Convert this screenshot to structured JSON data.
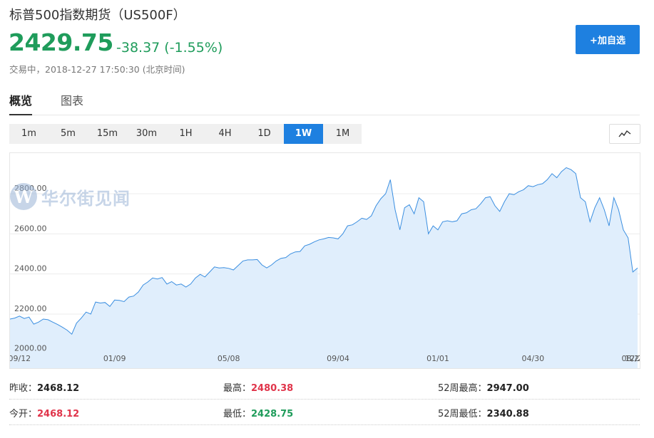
{
  "header": {
    "title": "标普500指数期货（US500F）",
    "price": "2429.75",
    "change": "-38.37 (-1.55%)",
    "status": "交易中，2018-12-27 17:50:30 (北京时间)",
    "watch_button": "+加自选"
  },
  "tabs": [
    "概览",
    "图表"
  ],
  "periods": {
    "items": [
      "1m",
      "5m",
      "15m",
      "30m",
      "1H",
      "4H",
      "1D",
      "1W",
      "1M"
    ],
    "active": "1W"
  },
  "chart_icon": "line-chart-icon",
  "watermark": {
    "logo": "W",
    "text": "华尔街见闻"
  },
  "chart_data": {
    "type": "area",
    "y_ticks": [
      "2200.00",
      "2400.00",
      "2600.00",
      "2800.00"
    ],
    "y_bottom_label": "2000.00",
    "x_ticks": [
      "09/12",
      "01/09",
      "05/08",
      "09/04",
      "01/01",
      "04/30",
      "08/27",
      "12/2"
    ],
    "ylim": [
      2000,
      2950
    ],
    "line_color": "#3a8ee0",
    "fill_color": "#e0eefc",
    "values": [
      2175,
      2180,
      2190,
      2178,
      2185,
      2150,
      2160,
      2175,
      2172,
      2160,
      2148,
      2135,
      2120,
      2100,
      2155,
      2180,
      2210,
      2200,
      2260,
      2255,
      2258,
      2238,
      2270,
      2268,
      2262,
      2285,
      2290,
      2310,
      2345,
      2360,
      2380,
      2375,
      2382,
      2350,
      2362,
      2345,
      2350,
      2335,
      2350,
      2380,
      2398,
      2385,
      2410,
      2435,
      2430,
      2432,
      2428,
      2420,
      2442,
      2465,
      2470,
      2470,
      2472,
      2445,
      2430,
      2445,
      2465,
      2478,
      2482,
      2500,
      2510,
      2512,
      2540,
      2548,
      2560,
      2570,
      2575,
      2582,
      2580,
      2575,
      2600,
      2640,
      2645,
      2660,
      2678,
      2672,
      2690,
      2740,
      2775,
      2800,
      2870,
      2720,
      2620,
      2730,
      2745,
      2700,
      2780,
      2760,
      2600,
      2640,
      2620,
      2660,
      2665,
      2660,
      2665,
      2700,
      2705,
      2720,
      2725,
      2750,
      2780,
      2785,
      2740,
      2712,
      2760,
      2800,
      2795,
      2810,
      2820,
      2840,
      2835,
      2845,
      2850,
      2870,
      2900,
      2880,
      2910,
      2930,
      2920,
      2900,
      2780,
      2760,
      2660,
      2730,
      2780,
      2720,
      2640,
      2780,
      2720,
      2620,
      2580,
      2410,
      2430
    ],
    "x_tick_positions": [
      2,
      22,
      46,
      69,
      90,
      110,
      131,
      151
    ]
  },
  "stats": [
    [
      {
        "label": "昨收：",
        "value": "2468.12",
        "color": ""
      },
      {
        "label": "最高：",
        "value": "2480.38",
        "color": "red"
      },
      {
        "label": "52周最高：",
        "value": "2947.00",
        "color": ""
      }
    ],
    [
      {
        "label": "今开：",
        "value": "2468.12",
        "color": "red"
      },
      {
        "label": "最低：",
        "value": "2428.75",
        "color": "green"
      },
      {
        "label": "52周最低：",
        "value": "2340.88",
        "color": ""
      }
    ]
  ]
}
